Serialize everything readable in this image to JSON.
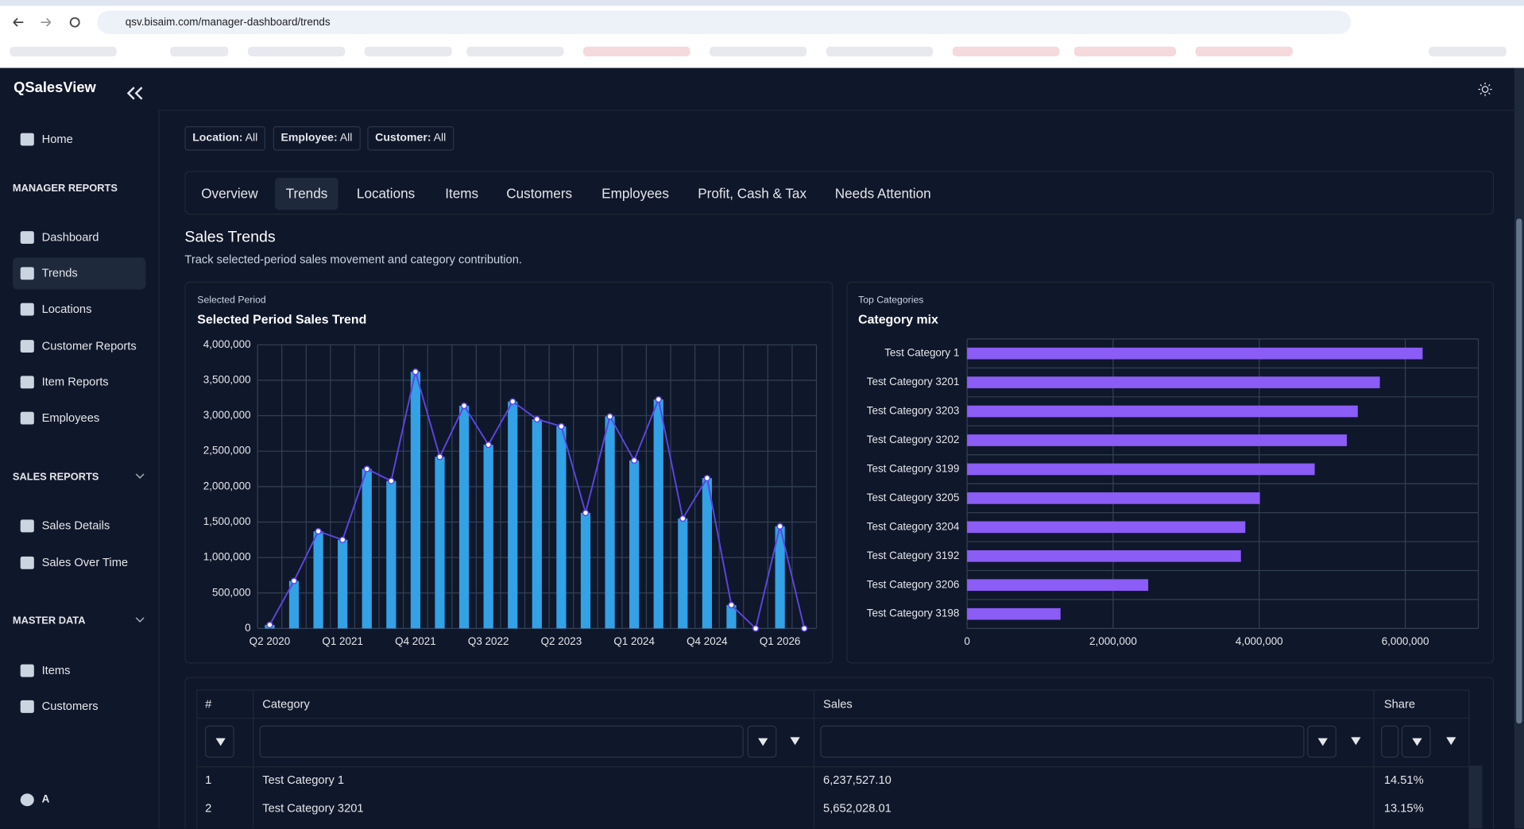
{
  "browser": {
    "url": "qsv.bisaim.com/manager-dashboard/trends"
  },
  "sidebar": {
    "brand": "QSalesView",
    "home": "Home",
    "groups": [
      {
        "title": "MANAGER REPORTS",
        "items": [
          "Dashboard",
          "Trends",
          "Locations",
          "Customer Reports",
          "Item Reports",
          "Employees"
        ]
      },
      {
        "title": "SALES REPORTS",
        "items": [
          "Sales Details",
          "Sales Over Time"
        ]
      },
      {
        "title": "MASTER DATA",
        "items": [
          "Items",
          "Customers"
        ]
      }
    ],
    "user": "A"
  },
  "filters": [
    {
      "label": "Location:",
      "value": "All"
    },
    {
      "label": "Employee:",
      "value": "All"
    },
    {
      "label": "Customer:",
      "value": "All"
    }
  ],
  "tabs": [
    "Overview",
    "Trends",
    "Locations",
    "Items",
    "Customers",
    "Employees",
    "Profit, Cash & Tax",
    "Needs Attention"
  ],
  "section": {
    "title": "Sales Trends",
    "subtitle": "Track selected-period sales movement and category contribution."
  },
  "chart_data": [
    {
      "type": "bar_line",
      "kicker": "Selected Period",
      "title": "Selected Period Sales Trend",
      "categories": [
        "Q2 2020",
        null,
        null,
        "Q1 2021",
        null,
        null,
        "Q4 2021",
        null,
        null,
        "Q3 2022",
        null,
        null,
        "Q2 2023",
        null,
        null,
        "Q1 2024",
        null,
        null,
        "Q4 2024",
        null,
        null,
        "Q1 2026",
        null
      ],
      "values": [
        50000,
        670000,
        1370000,
        1250000,
        2250000,
        2080000,
        3620000,
        2420000,
        3140000,
        2590000,
        3200000,
        2950000,
        2850000,
        1630000,
        2990000,
        2370000,
        3230000,
        1550000,
        2120000,
        330000,
        0,
        1440000,
        0
      ],
      "color": "#33a1e6",
      "line_color": "#5b45e0",
      "ylim": [
        0,
        4000000
      ],
      "yticks": [
        0,
        {
          "value": 500000,
          "label": "500,000"
        },
        {
          "value": 1000000,
          "label": "1,000,000"
        },
        {
          "value": 1500000,
          "label": "1,500,000"
        },
        {
          "value": 2000000,
          "label": "2,000,000"
        },
        {
          "value": 2500000,
          "label": "2,500,000"
        },
        {
          "value": 3000000,
          "label": "3,000,000"
        },
        {
          "value": 3500000,
          "label": "3,500,000"
        },
        {
          "value": 4000000,
          "label": "4,000,000"
        }
      ],
      "grid": true
    },
    {
      "type": "barh",
      "kicker": "Top Categories",
      "title": "Category mix",
      "categories": [
        "Test Category 1",
        "Test Category 3201",
        "Test Category 3203",
        "Test Category 3202",
        "Test Category 3199",
        "Test Category 3205",
        "Test Category 3204",
        "Test Category 3192",
        "Test Category 3206",
        "Test Category 3198"
      ],
      "values": [
        6237527.1,
        5652028.01,
        5350000,
        5200000,
        4760000,
        4010000,
        3810000,
        3750000,
        2480000,
        1280000
      ],
      "color": "#8b5cf6",
      "xlim": [
        0,
        7000000
      ],
      "xticks": [
        0,
        {
          "value": 2000000,
          "label": "2,000,000"
        },
        {
          "value": 4000000,
          "label": "4,000,000"
        },
        {
          "value": 6000000,
          "label": "6,000,000"
        }
      ],
      "grid": true
    }
  ],
  "table": {
    "columns": [
      "#",
      "Category",
      "Sales",
      "Share"
    ],
    "rows": [
      [
        1,
        "Test Category 1",
        "6,237,527.10",
        "14.51%"
      ],
      [
        2,
        "Test Category 3201",
        "5,652,028.01",
        "13.15%"
      ]
    ]
  }
}
